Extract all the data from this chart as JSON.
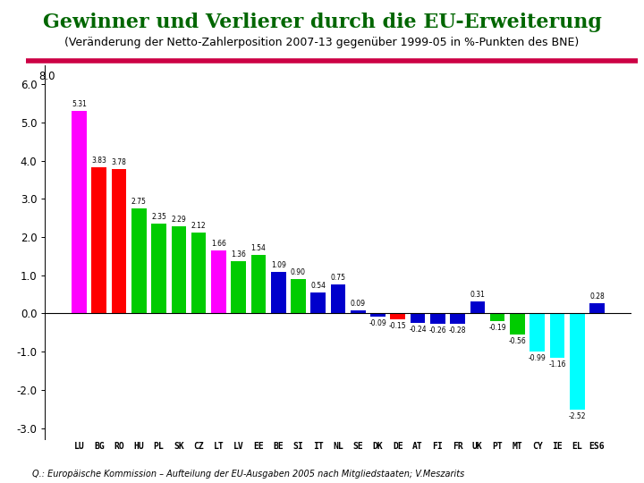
{
  "title": "Gewinner und Verlierer durch die EU-Erweiterung",
  "subtitle": "(Veränderung der Netto-Zahlerposition 2007-13 gegenüber 1999-05 in %-Punkten des BNE)",
  "source": "Q.: Europäische Kommission – Aufteilung der EU-Ausgaben 2005 nach Mitgliedstaaten; V.Meszarits",
  "categories": [
    "LU",
    "BG",
    "RO",
    "HU",
    "PL",
    "SK",
    "CZ",
    "LT",
    "LV",
    "EE",
    "BE",
    "SI",
    "IT",
    "NL",
    "SE",
    "DK",
    "DE",
    "AT",
    "FI",
    "FR",
    "UK",
    "PT",
    "MT",
    "CY",
    "IE",
    "EL",
    "ES6"
  ],
  "values": [
    5.31,
    3.83,
    3.78,
    2.75,
    2.35,
    2.29,
    2.12,
    1.66,
    1.36,
    1.54,
    1.09,
    0.9,
    0.54,
    0.75,
    0.09,
    -0.09,
    -0.15,
    -0.24,
    -0.26,
    -0.28,
    0.31,
    -0.19,
    -0.56,
    -0.99,
    -1.16,
    -2.52,
    0.28
  ],
  "colors": [
    "#ff00ff",
    "#ff0000",
    "#ff0000",
    "#00cc00",
    "#00cc00",
    "#00cc00",
    "#00cc00",
    "#ff00ff",
    "#00cc00",
    "#00cc00",
    "#0000cc",
    "#00cc00",
    "#0000cc",
    "#0000cc",
    "#0000cc",
    "#0000cc",
    "#ff0000",
    "#0000cc",
    "#0000cc",
    "#0000cc",
    "#0000cc",
    "#00cc00",
    "#00cc00",
    "#00ffff",
    "#00ffff",
    "#00ffff",
    "#0000cc"
  ],
  "ylim": [
    -3.3,
    6.5
  ],
  "yticks": [
    -3.0,
    -2.0,
    -1.0,
    0.0,
    1.0,
    2.0,
    3.0,
    4.0,
    5.0,
    6.0,
    8.0
  ],
  "ytick_labels": [
    "-3.0",
    "-2.0",
    "-1.0",
    "0.0",
    "1.0",
    "2.0",
    "3.0",
    "4.0",
    "5.0",
    "6.0",
    "8.0"
  ],
  "title_color": "#006600",
  "title_fontsize": 16,
  "subtitle_fontsize": 9,
  "bar_width": 0.75,
  "top_line_color": "#cc0044",
  "background_color": "#ffffff",
  "label_fontsize": 5.5,
  "xtick_fontsize": 7,
  "ytick_fontsize": 8.5
}
